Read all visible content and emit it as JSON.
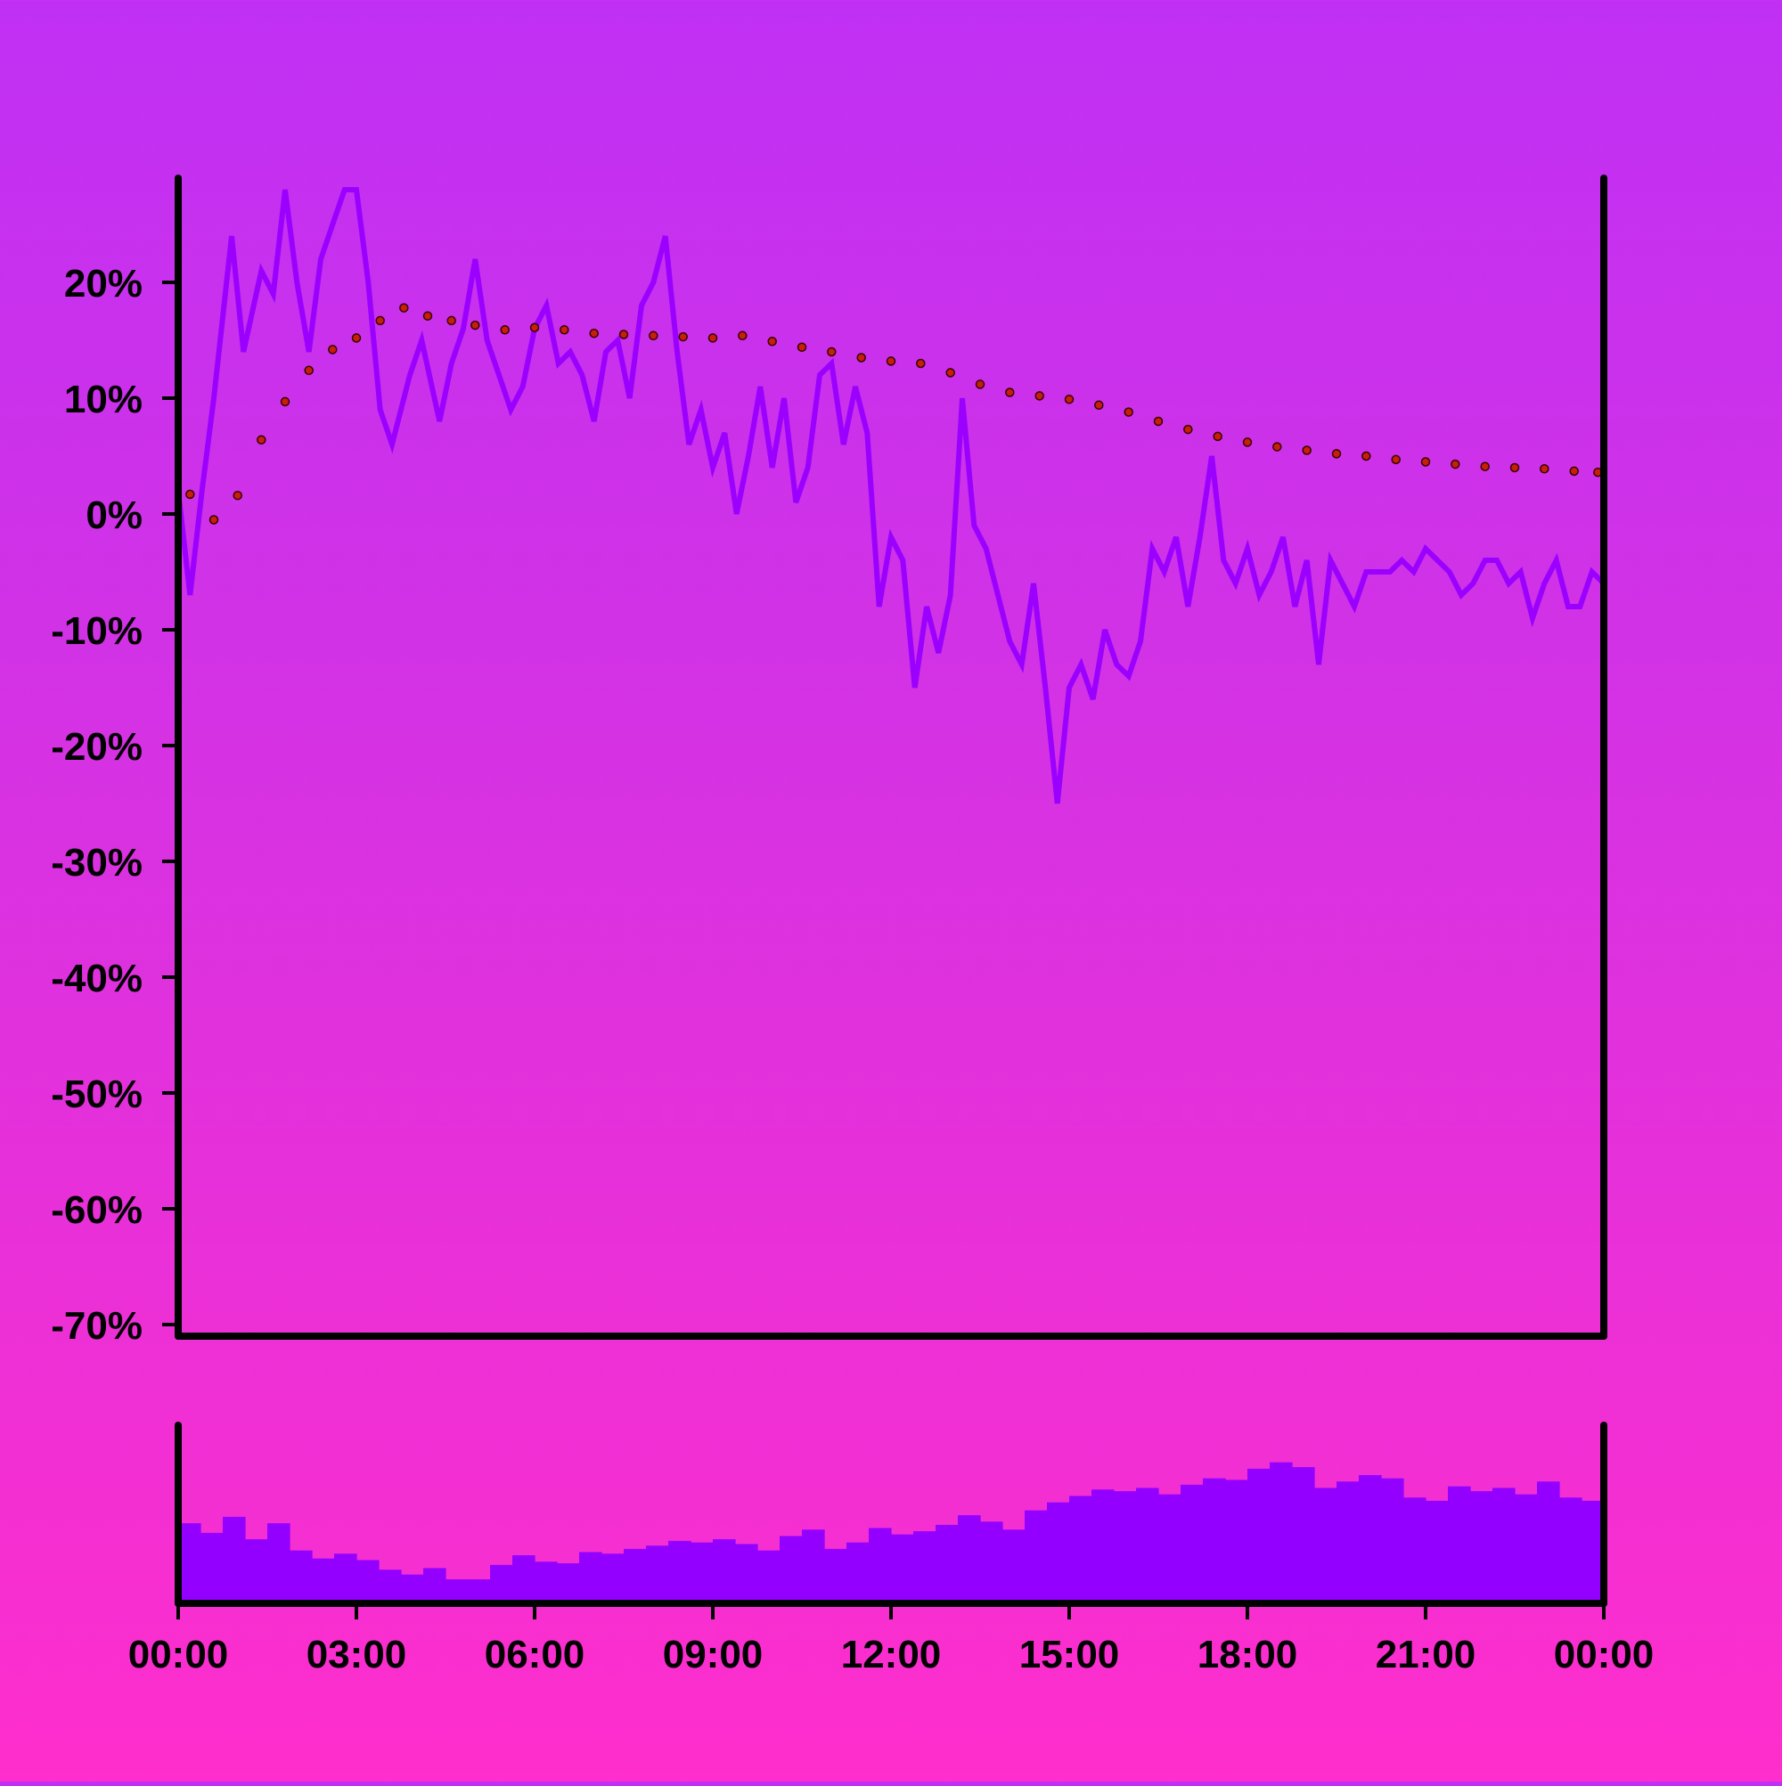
{
  "colors": {
    "price_line": "#9b00ff",
    "volume_bars": "#9400ff",
    "ma_dot_fill": "#c81e0a",
    "ma_dot_stroke": "#330000",
    "axis": "#000000",
    "bg_top": "#c030f4",
    "bg_bottom": "#ff2ecc"
  },
  "chart_data": {
    "type": "line",
    "title": "",
    "xlabel": "",
    "ylabel": "",
    "grid": false,
    "legend": "none",
    "x_unit": "time of day",
    "x_range": [
      "00:00",
      "24:00"
    ],
    "x_ticks": [
      "00:00",
      "03:00",
      "06:00",
      "09:00",
      "12:00",
      "15:00",
      "18:00",
      "21:00",
      "00:00"
    ],
    "y_ticks": [
      "20%",
      "10%",
      "0%",
      "-10%",
      "-20%",
      "-30%",
      "-40%",
      "-50%",
      "-60%",
      "-70%"
    ],
    "ylim": [
      -71,
      29
    ],
    "series": [
      {
        "kind": "price",
        "style": "solid line",
        "x_hours": [
          0,
          0.2,
          0.4,
          0.6,
          0.9,
          1.1,
          1.4,
          1.6,
          1.8,
          2.0,
          2.2,
          2.4,
          2.6,
          2.8,
          3.0,
          3.2,
          3.4,
          3.6,
          3.9,
          4.1,
          4.4,
          4.6,
          4.8,
          5.0,
          5.2,
          5.4,
          5.6,
          5.8,
          6.0,
          6.2,
          6.4,
          6.6,
          6.8,
          7.0,
          7.2,
          7.4,
          7.6,
          7.8,
          8.0,
          8.2,
          8.4,
          8.6,
          8.8,
          9.0,
          9.2,
          9.4,
          9.6,
          9.8,
          10.0,
          10.2,
          10.4,
          10.6,
          10.8,
          11.0,
          11.2,
          11.4,
          11.6,
          11.8,
          12.0,
          12.2,
          12.4,
          12.6,
          12.8,
          13.0,
          13.2,
          13.4,
          13.6,
          13.8,
          14.0,
          14.2,
          14.4,
          14.6,
          14.8,
          15.0,
          15.2,
          15.4,
          15.6,
          15.8,
          16.0,
          16.2,
          16.4,
          16.6,
          16.8,
          17.0,
          17.2,
          17.4,
          17.6,
          17.8,
          18.0,
          18.2,
          18.4,
          18.6,
          18.8,
          19.0,
          19.2,
          19.4,
          19.6,
          19.8,
          20.0,
          20.2,
          20.4,
          20.6,
          20.8,
          21.0,
          21.2,
          21.4,
          21.6,
          21.8,
          22.0,
          22.2,
          22.4,
          22.6,
          22.8,
          23.0,
          23.2,
          23.4,
          23.6,
          23.8,
          24.0
        ],
        "values": [
          2,
          -7,
          2,
          10,
          24,
          14,
          21,
          19,
          28,
          20,
          14,
          22,
          25,
          28,
          28,
          20,
          9,
          6,
          12,
          15,
          8,
          13,
          16,
          22,
          15,
          12,
          9,
          11,
          16,
          18,
          13,
          14,
          12,
          8,
          14,
          15,
          10,
          18,
          20,
          24,
          14,
          6,
          9,
          4,
          7,
          0,
          5,
          11,
          4,
          10,
          1,
          4,
          12,
          13,
          6,
          11,
          7,
          -8,
          -2,
          -4,
          -15,
          -8,
          -12,
          -7,
          10,
          -1,
          -3,
          -7,
          -11,
          -13,
          -6,
          -15,
          -25,
          -15,
          -13,
          -16,
          -10,
          -13,
          -14,
          -11,
          -3,
          -5,
          -2,
          -8,
          -2,
          5,
          -4,
          -6,
          -3,
          -7,
          -5,
          -2,
          -8,
          -4,
          -13,
          -4,
          -6,
          -8,
          -5,
          -5,
          -5,
          -4,
          -5,
          -3,
          -4,
          -5,
          -7,
          -6,
          -4,
          -4,
          -6,
          -5,
          -9,
          -6,
          -4,
          -8,
          -8,
          -5,
          -6
        ]
      },
      {
        "kind": "moving average",
        "style": "dotted red markers",
        "x_hours": [
          0.2,
          0.6,
          1.0,
          1.4,
          1.8,
          2.2,
          2.6,
          3.0,
          3.4,
          3.8,
          4.2,
          4.6,
          5.0,
          5.5,
          6.0,
          6.5,
          7.0,
          7.5,
          8.0,
          8.5,
          9.0,
          9.5,
          10.0,
          10.5,
          11.0,
          11.5,
          12.0,
          12.5,
          13.0,
          13.5,
          14.0,
          14.5,
          15.0,
          15.5,
          16.0,
          16.5,
          17.0,
          17.5,
          18.0,
          18.5,
          19.0,
          19.5,
          20.0,
          20.5,
          21.0,
          21.5,
          22.0,
          22.5,
          23.0,
          23.5,
          23.9
        ],
        "values": [
          1.7,
          -0.5,
          1.6,
          6.4,
          9.7,
          12.4,
          14.2,
          15.2,
          16.7,
          17.8,
          17.1,
          16.7,
          16.3,
          15.9,
          16.1,
          15.9,
          15.6,
          15.5,
          15.4,
          15.3,
          15.2,
          15.4,
          14.9,
          14.4,
          14.0,
          13.5,
          13.2,
          13.0,
          12.2,
          11.2,
          10.5,
          10.2,
          9.9,
          9.4,
          8.8,
          8.0,
          7.3,
          6.7,
          6.2,
          5.8,
          5.5,
          5.2,
          5.0,
          4.7,
          4.5,
          4.3,
          4.1,
          4.0,
          3.9,
          3.7,
          3.6
        ]
      },
      {
        "kind": "volume",
        "style": "bars (lower panel, no scale shown)",
        "values_relative": [
          0.5,
          0.44,
          0.54,
          0.4,
          0.5,
          0.33,
          0.28,
          0.31,
          0.27,
          0.21,
          0.18,
          0.22,
          0.15,
          0.15,
          0.24,
          0.3,
          0.26,
          0.25,
          0.32,
          0.31,
          0.34,
          0.36,
          0.39,
          0.38,
          0.4,
          0.37,
          0.33,
          0.42,
          0.46,
          0.34,
          0.38,
          0.47,
          0.43,
          0.45,
          0.49,
          0.55,
          0.51,
          0.46,
          0.58,
          0.63,
          0.67,
          0.71,
          0.7,
          0.72,
          0.68,
          0.74,
          0.78,
          0.77,
          0.84,
          0.88,
          0.85,
          0.72,
          0.76,
          0.8,
          0.78,
          0.66,
          0.64,
          0.73,
          0.7,
          0.72,
          0.68,
          0.76,
          0.66,
          0.64
        ]
      }
    ]
  }
}
